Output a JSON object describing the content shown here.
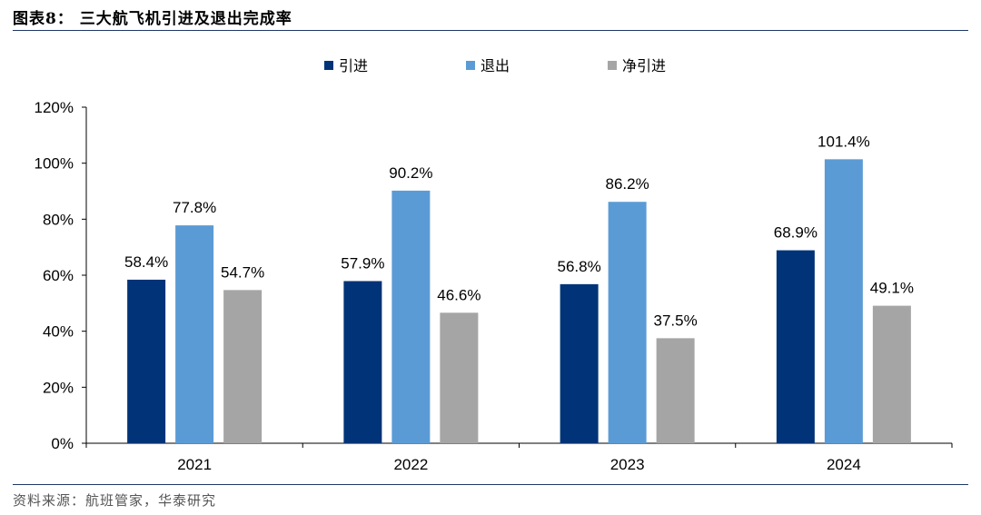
{
  "figure": {
    "title": "图表8： 三大航飞机引进及退出完成率",
    "source": "资料来源：航班管家，华泰研究"
  },
  "chart_data": {
    "type": "bar",
    "categories": [
      "2021",
      "2022",
      "2023",
      "2024"
    ],
    "series": [
      {
        "name": "引进",
        "values": [
          58.4,
          57.9,
          56.8,
          68.9
        ],
        "color": "#003377"
      },
      {
        "name": "退出",
        "values": [
          77.8,
          90.2,
          86.2,
          101.4
        ],
        "color": "#5b9bd5"
      },
      {
        "name": "净引进",
        "values": [
          54.7,
          46.6,
          37.5,
          49.1
        ],
        "color": "#a5a5a5"
      }
    ],
    "data_labels": [
      [
        "58.4%",
        "57.9%",
        "56.8%",
        "68.9%"
      ],
      [
        "77.8%",
        "90.2%",
        "86.2%",
        "101.4%"
      ],
      [
        "54.7%",
        "46.6%",
        "37.5%",
        "49.1%"
      ]
    ],
    "ylim": [
      0,
      120
    ],
    "ytick_labels": [
      "0%",
      "20%",
      "40%",
      "60%",
      "80%",
      "100%",
      "120%"
    ],
    "legend_position": "top-center",
    "grid": false,
    "xlabel": "",
    "ylabel": ""
  }
}
